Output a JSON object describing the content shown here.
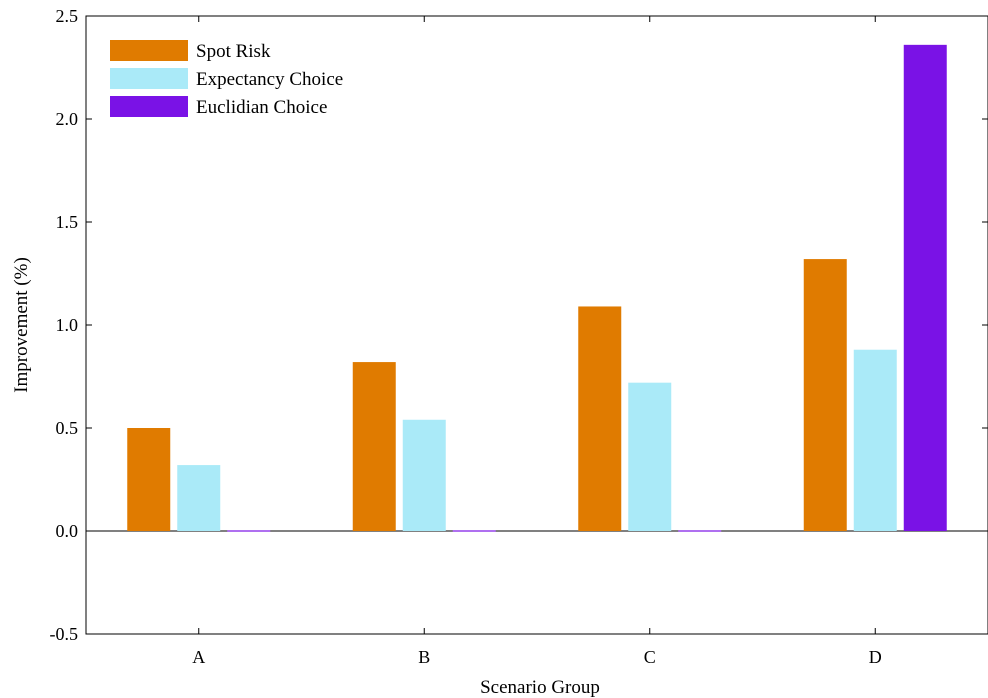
{
  "chart_data": {
    "type": "bar",
    "xlabel": "Scenario Group",
    "ylabel": "Improvement (%)",
    "categories": [
      "A",
      "B",
      "C",
      "D"
    ],
    "ylim": [
      -0.5,
      2.5
    ],
    "yticks": [
      "-0.5",
      "0.0",
      "0.5",
      "1.0",
      "1.5",
      "2.0",
      "2.5"
    ],
    "legend_position": "top-left",
    "grid": false,
    "series": [
      {
        "name": "Spot Risk",
        "color": "#e07b00",
        "values": [
          0.5,
          0.82,
          1.09,
          1.32
        ]
      },
      {
        "name": "Expectancy Choice",
        "color": "#aaeaf8",
        "values": [
          0.32,
          0.54,
          0.72,
          0.88
        ]
      },
      {
        "name": "Euclidian Choice",
        "color": "#7a12e6",
        "values": [
          0.0,
          0.0,
          0.0,
          2.36
        ]
      }
    ]
  }
}
